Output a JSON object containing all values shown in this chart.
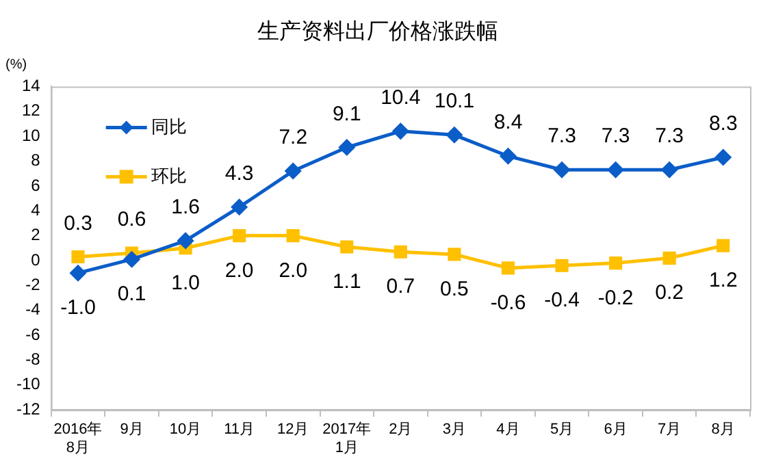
{
  "chart_data": {
    "type": "line",
    "title": "生产资料出厂价格涨跌幅",
    "ylabel": "(%)",
    "categories": [
      "2016年\n8月",
      "9月",
      "10月",
      "11月",
      "12月",
      "2017年\n1月",
      "2月",
      "3月",
      "4月",
      "5月",
      "6月",
      "7月",
      "8月"
    ],
    "series": [
      {
        "name": "同比",
        "color": "#0b5dc8",
        "marker": "diamond",
        "values": [
          -1.0,
          0.1,
          1.6,
          4.3,
          7.2,
          9.1,
          10.4,
          10.1,
          8.4,
          7.3,
          7.3,
          7.3,
          8.3
        ],
        "value_labels": [
          "-1.0",
          "0.1",
          "1.6",
          "4.3",
          "7.2",
          "9.1",
          "10.4",
          "10.1",
          "8.4",
          "7.3",
          "7.3",
          "7.3",
          "8.3"
        ]
      },
      {
        "name": "环比",
        "color": "#ffc000",
        "marker": "square",
        "values": [
          0.3,
          0.6,
          1.0,
          2.0,
          2.0,
          1.1,
          0.7,
          0.5,
          -0.6,
          -0.4,
          -0.2,
          0.2,
          1.2
        ],
        "value_labels": [
          "0.3",
          "0.6",
          "1.0",
          "2.0",
          "2.0",
          "1.1",
          "0.7",
          "0.5",
          "-0.6",
          "-0.4",
          "-0.2",
          "0.2",
          "1.2"
        ]
      }
    ],
    "ylim": [
      -12,
      14
    ],
    "yticks": [
      -12,
      -10,
      -8,
      -6,
      -4,
      -2,
      0,
      2,
      4,
      6,
      8,
      10,
      12,
      14
    ],
    "grid": false,
    "legend": "top left",
    "line_style": "solid"
  }
}
